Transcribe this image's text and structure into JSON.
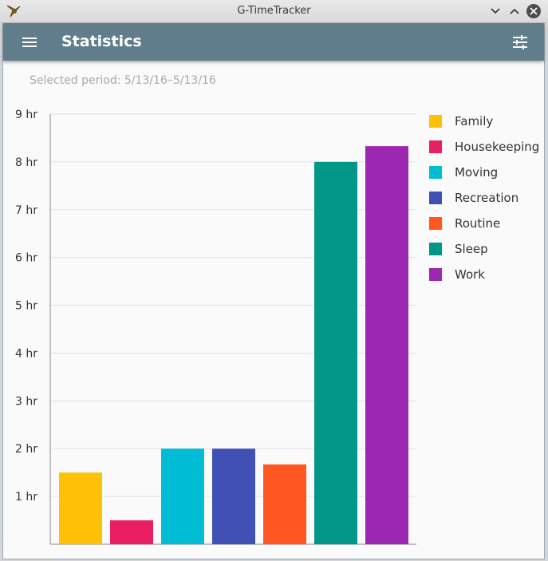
{
  "window": {
    "title": "G-TimeTracker"
  },
  "appbar": {
    "title": "Statistics"
  },
  "period": {
    "text": "Selected period: 5/13/16–5/13/16"
  },
  "chart_data": {
    "type": "bar",
    "title": "",
    "xlabel": "",
    "ylabel": "",
    "ylim": [
      0,
      9
    ],
    "yticks": [
      {
        "value": 1,
        "label": "1 hr"
      },
      {
        "value": 2,
        "label": "2 hr"
      },
      {
        "value": 3,
        "label": "3 hr"
      },
      {
        "value": 4,
        "label": "4 hr"
      },
      {
        "value": 5,
        "label": "5 hr"
      },
      {
        "value": 6,
        "label": "6 hr"
      },
      {
        "value": 7,
        "label": "7 hr"
      },
      {
        "value": 8,
        "label": "8 hr"
      },
      {
        "value": 9,
        "label": "9 hr"
      }
    ],
    "categories": [
      "Family",
      "Housekeeping",
      "Moving",
      "Recreation",
      "Routine",
      "Sleep",
      "Work"
    ],
    "values": [
      1.5,
      0.5,
      2.0,
      2.0,
      1.67,
      8.0,
      8.33
    ],
    "colors": [
      "#ffc107",
      "#e91e63",
      "#00bcd4",
      "#3f51b5",
      "#ff5722",
      "#009688",
      "#9c27b0"
    ],
    "legend_position": "right",
    "grid": true
  }
}
